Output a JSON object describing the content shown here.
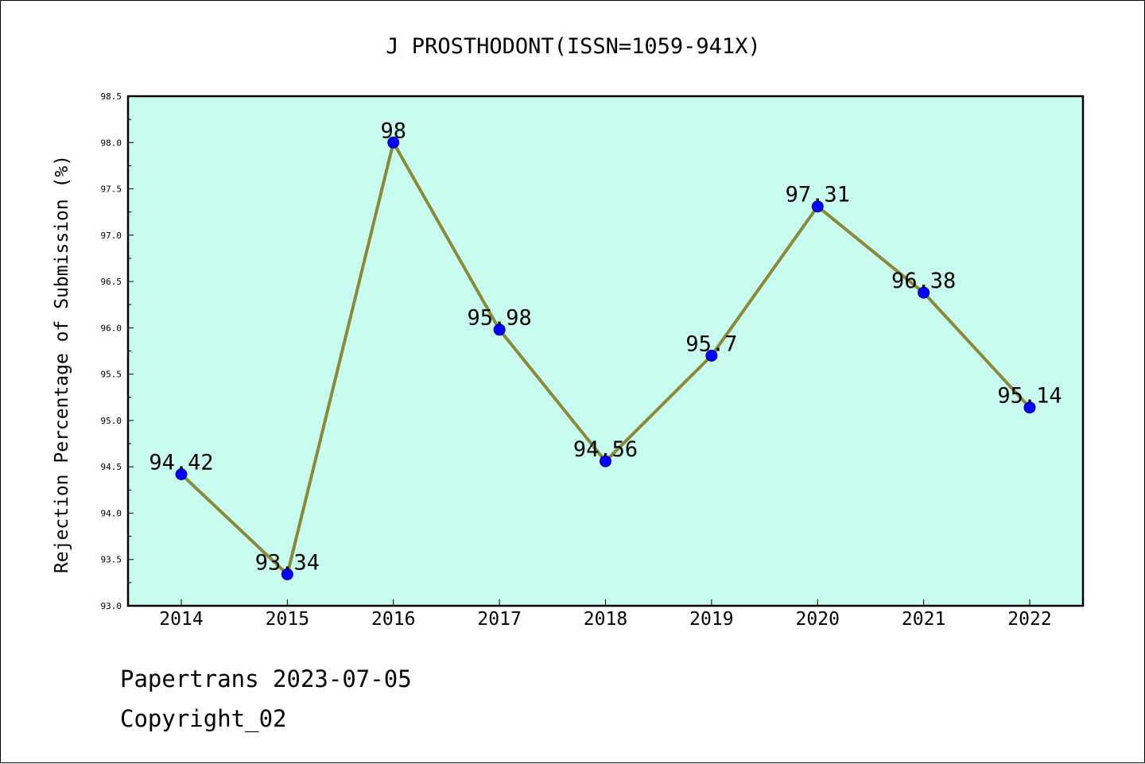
{
  "chart_data": {
    "type": "line",
    "title": "J PROSTHODONT(ISSN=1059-941X)",
    "xlabel": "",
    "ylabel": "Rejection Percentage of Submission (%)",
    "categories": [
      "2014",
      "2015",
      "2016",
      "2017",
      "2018",
      "2019",
      "2020",
      "2021",
      "2022"
    ],
    "series": [
      {
        "values": [
          94.42,
          93.34,
          98,
          95.98,
          94.56,
          95.7,
          97.31,
          96.38,
          95.14
        ],
        "labels": [
          "94.42",
          "93.34",
          "98",
          "95.98",
          "94.56",
          "95.7",
          "97.31",
          "96.38",
          "95.14"
        ],
        "line_color": "#8b8a3b",
        "marker_color": "#0000ff"
      }
    ],
    "ylim": [
      93.0,
      98.5
    ],
    "yticks": [
      93.0,
      93.5,
      94.0,
      94.5,
      95.0,
      95.5,
      96.0,
      96.5,
      97.0,
      97.5,
      98.0,
      98.5
    ],
    "ytick_labels": [
      "93.0",
      "93.5",
      "94.0",
      "94.5",
      "95.0",
      "95.5",
      "96.0",
      "96.5",
      "97.0",
      "97.5",
      "98.0",
      "98.5"
    ],
    "plot_background": "#c8fcee",
    "grid": false,
    "legend": "none"
  },
  "footer": {
    "line1": "Papertrans 2023-07-05",
    "line2": "Copyright_02"
  }
}
